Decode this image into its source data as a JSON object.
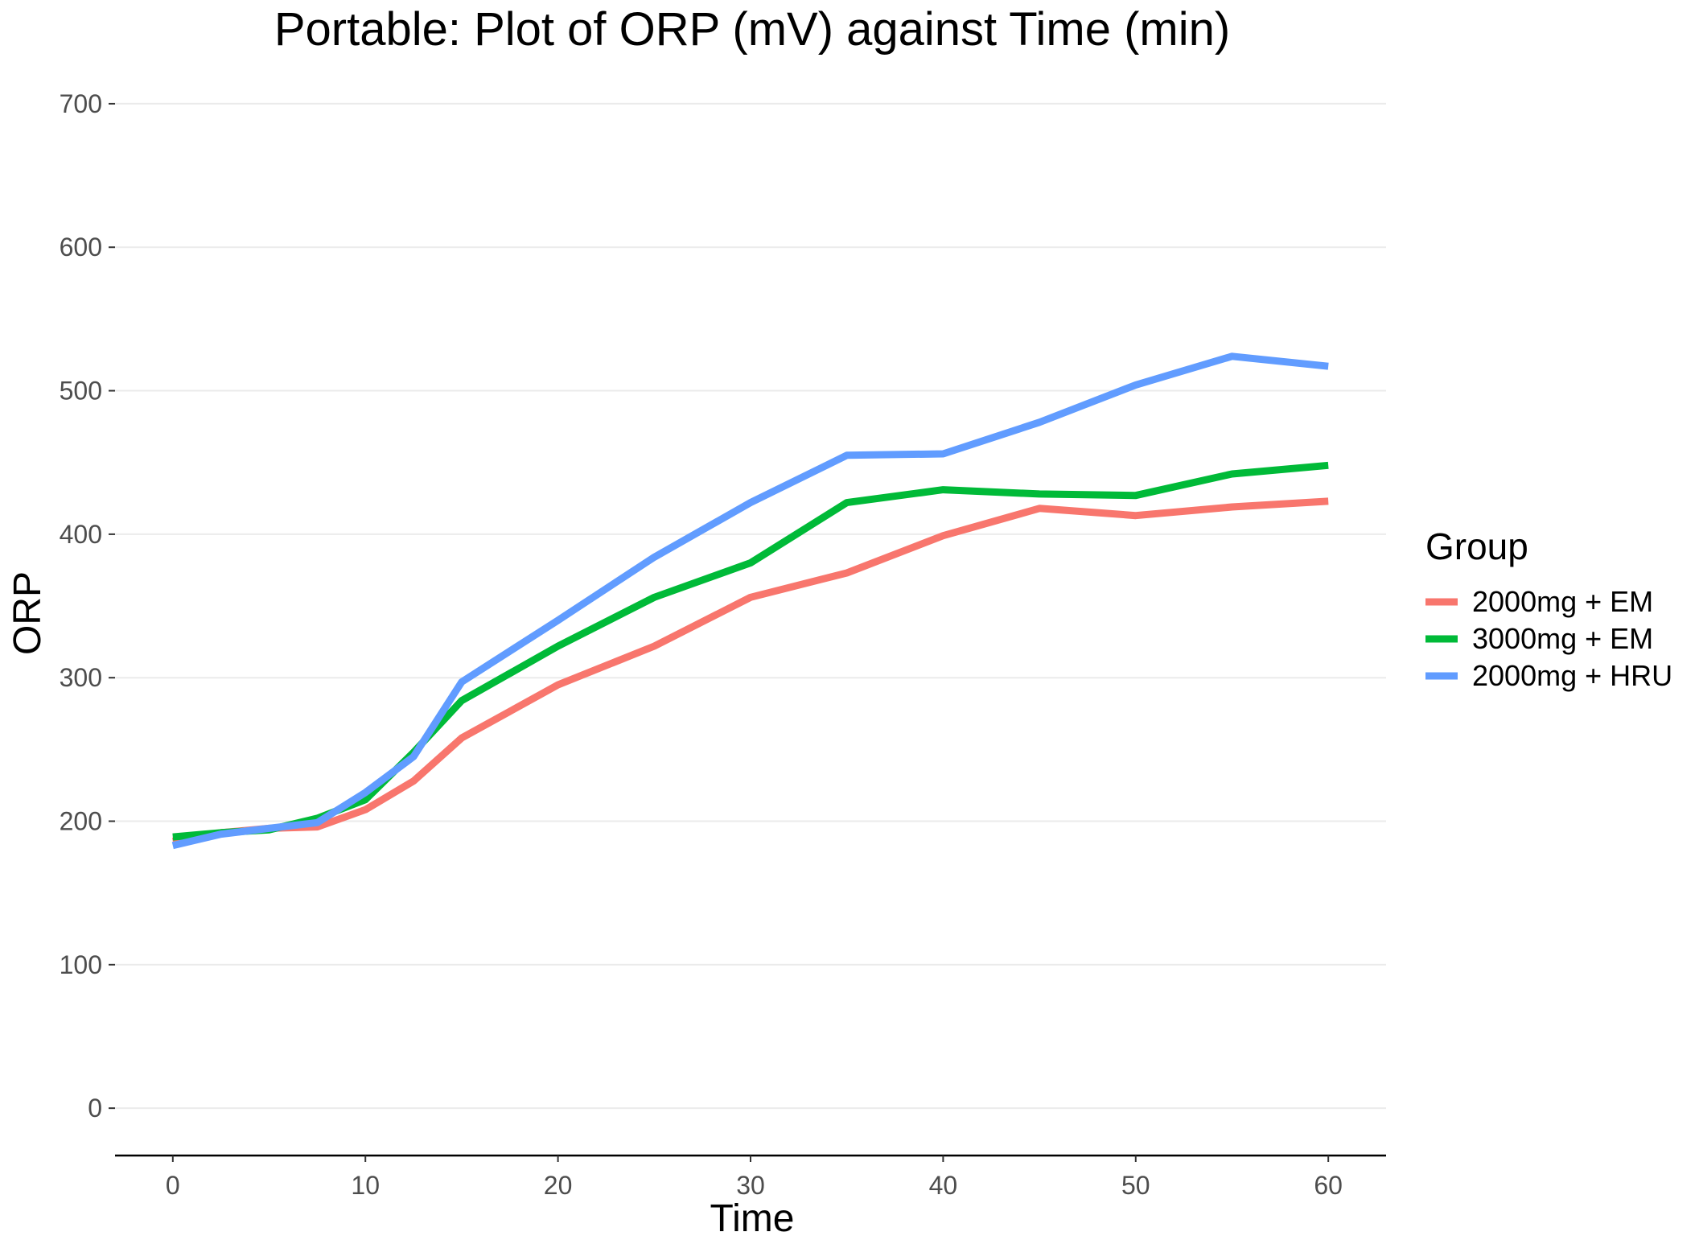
{
  "chart_data": {
    "type": "line",
    "title": "Portable: Plot of ORP (mV) against Time (min)",
    "xlabel": "Time",
    "ylabel": "ORP",
    "xlim": [
      -3,
      63
    ],
    "ylim": [
      -33,
      705
    ],
    "x_ticks": [
      0,
      10,
      20,
      30,
      40,
      50,
      60
    ],
    "y_ticks": [
      0,
      100,
      200,
      300,
      400,
      500,
      600,
      700
    ],
    "grid": "horizontal",
    "legend": {
      "title": "Group",
      "position": "right"
    },
    "x": [
      0,
      2.5,
      5,
      7.5,
      10,
      12.5,
      15,
      20,
      25,
      30,
      35,
      40,
      45,
      50,
      55,
      60
    ],
    "series": [
      {
        "name": "2000mg + EM",
        "color": "#F8766D",
        "values": [
          186,
          192,
          195,
          196,
          208,
          228,
          258,
          295,
          322,
          356,
          373,
          399,
          418,
          413,
          419,
          423
        ]
      },
      {
        "name": "3000mg + EM",
        "color": "#00BA38",
        "values": [
          189,
          192,
          194,
          202,
          215,
          248,
          284,
          322,
          356,
          380,
          422,
          431,
          428,
          427,
          442,
          448
        ]
      },
      {
        "name": "2000mg + HRU",
        "color": "#619CFF",
        "values": [
          183,
          191,
          195,
          199,
          220,
          245,
          297,
          340,
          384,
          422,
          455,
          456,
          478,
          504,
          524,
          517
        ]
      }
    ]
  }
}
